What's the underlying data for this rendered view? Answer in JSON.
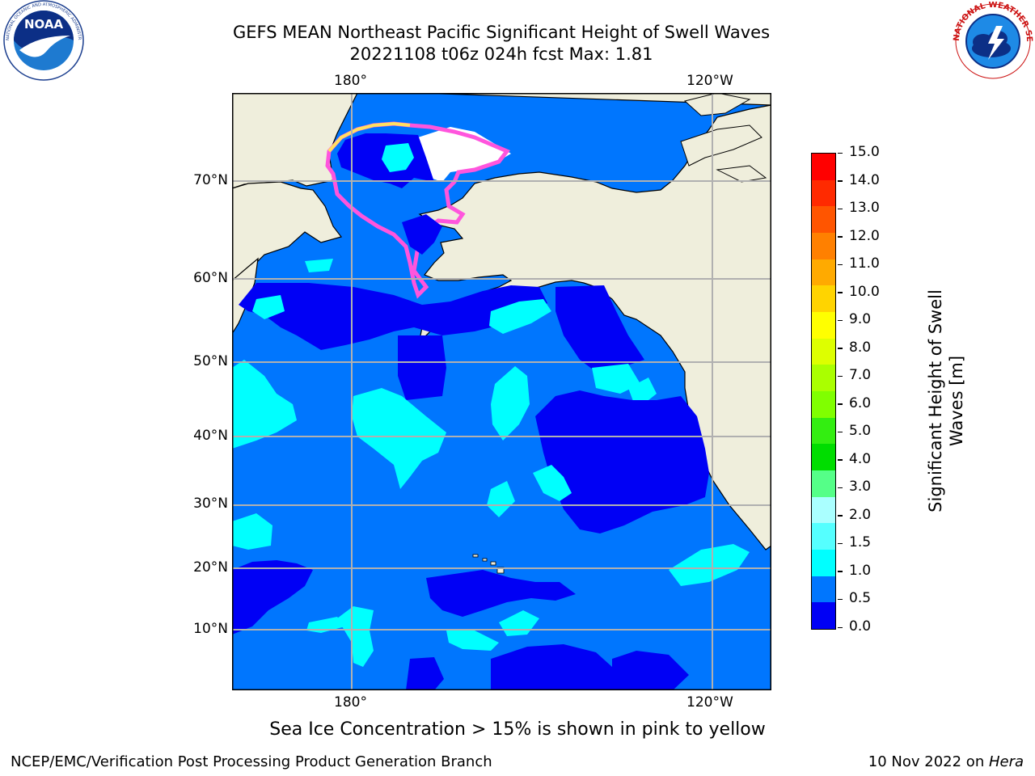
{
  "header": {
    "title_line1": "GEFS MEAN Northeast Pacific Significant Height of Swell Waves",
    "title_line2": "20221108 t06z 024h fcst   Max: 1.81"
  },
  "logos": {
    "noaa_text": "NOAA",
    "noaa_ring_text": "NATIONAL OCEANIC AND ATMOSPHERIC ADMINISTRATION · U.S. DEPARTMENT OF COMMERCE",
    "nws_ring_text": "NATIONAL WEATHER SERVICE"
  },
  "map": {
    "top_lon_labels": [
      "180°",
      "120°W"
    ],
    "bottom_lon_labels": [
      "180°",
      "120°W"
    ],
    "lat_labels": [
      "70°N",
      "60°N",
      "50°N",
      "40°N",
      "30°N",
      "20°N",
      "10°N"
    ],
    "colors": {
      "land": "#efeedc",
      "ocean_0_05": "#0000f5",
      "ocean_05_10": "#0076fe",
      "ocean_10_15": "#00ffff",
      "sea_ice_pink": "#ff55dd",
      "sea_ice_yellow": "#ffe060",
      "gridline": "#b0b0b0"
    }
  },
  "colorbar": {
    "label_line1": "Significant Height of Swell",
    "label_line2": "Waves [m]",
    "ticks": [
      "15.0",
      "14.0",
      "13.0",
      "12.0",
      "11.0",
      "10.0",
      "9.0",
      "8.0",
      "7.0",
      "6.0",
      "5.0",
      "4.0",
      "3.0",
      "2.0",
      "1.5",
      "1.0",
      "0.5",
      "0.0"
    ],
    "colors_top_to_bottom": [
      "#ff0000",
      "#ff2a00",
      "#ff5500",
      "#ff8000",
      "#ffaa00",
      "#ffd400",
      "#ffff00",
      "#ddff00",
      "#aaff00",
      "#80ff00",
      "#33ee11",
      "#00dd00",
      "#55ff88",
      "#aaffff",
      "#55ffff",
      "#00ffff",
      "#0076fe",
      "#0000f5"
    ]
  },
  "caption": "Sea Ice Concentration > 15% is shown in pink to yellow",
  "footer": {
    "left": "NCEP/EMC/Verification Post Processing Product Generation Branch",
    "right_date": "10 Nov 2022 on ",
    "right_host": "Hera"
  }
}
